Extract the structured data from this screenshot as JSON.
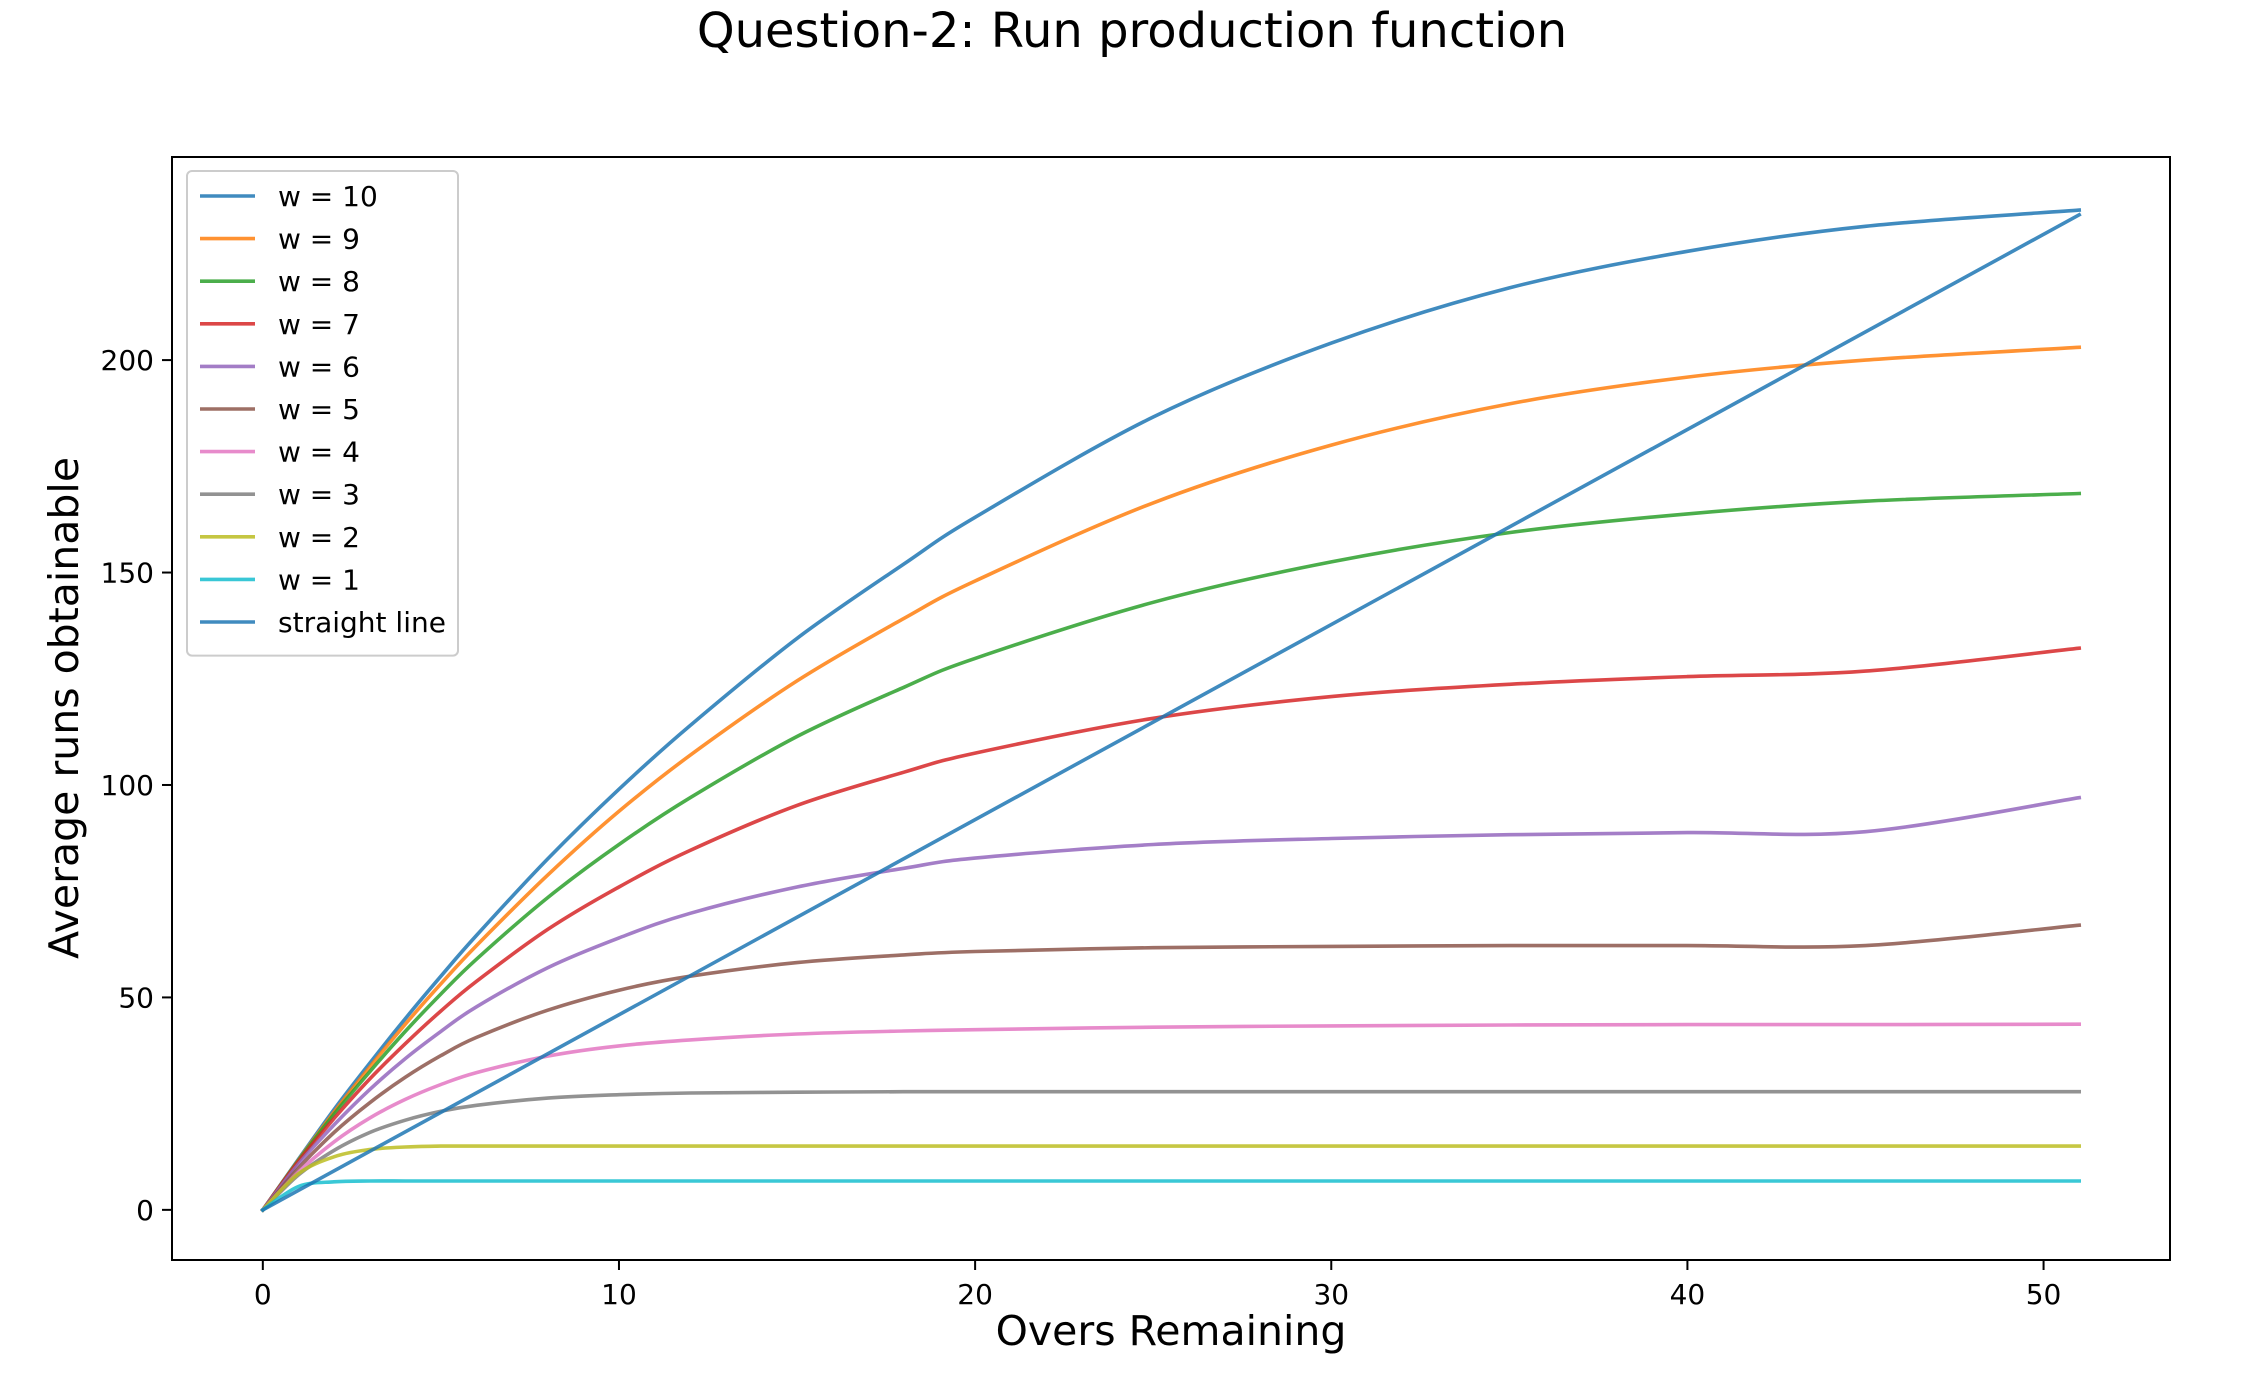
{
  "chart_data": {
    "type": "line",
    "title": "Question-2: Run production function",
    "xlabel": "Overs Remaining",
    "ylabel": "Average runs obtainable",
    "xlim": [
      -2.55,
      53.55
    ],
    "ylim": [
      -11.8,
      247.8
    ],
    "xticks": [
      0,
      10,
      20,
      30,
      40,
      50
    ],
    "yticks": [
      0,
      50,
      100,
      150,
      200
    ],
    "grid": false,
    "legend_position": "top-left",
    "x": [
      0,
      1,
      2,
      3,
      4,
      5,
      6,
      8,
      10,
      12,
      15,
      18,
      20,
      25,
      30,
      35,
      40,
      45,
      51
    ],
    "series": [
      {
        "name": "w = 10",
        "color": "#1f77b4",
        "values": [
          0,
          11.9,
          23.6,
          34.5,
          45,
          55,
          64.6,
          82.6,
          99,
          114,
          134.5,
          152,
          163,
          186.6,
          204,
          217,
          225.6,
          231.5,
          235.3
        ]
      },
      {
        "name": "w = 9",
        "color": "#ff7f0e",
        "values": [
          0,
          11.7,
          23,
          33.6,
          43.7,
          53.2,
          62.2,
          78.8,
          93.8,
          107,
          124.5,
          139.2,
          148,
          166.4,
          180,
          189.7,
          196,
          200,
          203
        ]
      },
      {
        "name": "w = 8",
        "color": "#2ca02c",
        "values": [
          0,
          11.6,
          22.5,
          32.5,
          42,
          50.8,
          59,
          73.5,
          86,
          97,
          111.4,
          123,
          129.8,
          143,
          152.5,
          159.4,
          163.8,
          166.8,
          168.6
        ]
      },
      {
        "name": "w = 7",
        "color": "#d62728",
        "values": [
          0,
          11.4,
          21.5,
          30.8,
          39.1,
          46.8,
          53.8,
          66,
          76,
          84.6,
          95.2,
          103,
          107.5,
          115.7,
          120.8,
          123.7,
          125.5,
          126.8,
          132.2
        ]
      },
      {
        "name": "w = 6",
        "color": "#9467bd",
        "values": [
          0,
          10.8,
          20,
          28.3,
          35.6,
          42,
          47.8,
          57,
          64,
          69.8,
          76,
          80.4,
          82.8,
          86,
          87.4,
          88.3,
          88.8,
          89,
          97
        ]
      },
      {
        "name": "w = 5",
        "color": "#8c564b",
        "values": [
          0,
          9.8,
          18.2,
          25.2,
          31.2,
          36.3,
          40.6,
          47,
          51.7,
          55,
          58.2,
          60,
          60.8,
          61.7,
          62,
          62.2,
          62.2,
          62.2,
          67
        ]
      },
      {
        "name": "w = 4",
        "color": "#e377c2",
        "values": [
          0,
          8.9,
          16,
          21.6,
          26,
          29.5,
          32.3,
          36.2,
          38.6,
          40,
          41.4,
          42.1,
          42.4,
          43,
          43.3,
          43.5,
          43.6,
          43.6,
          43.7
        ]
      },
      {
        "name": "w = 3",
        "color": "#7f7f7f",
        "values": [
          0,
          8.2,
          14,
          18.2,
          21.1,
          23.2,
          24.6,
          26.3,
          27.1,
          27.5,
          27.7,
          27.8,
          27.8,
          27.8,
          27.8,
          27.8,
          27.8,
          27.8,
          27.8
        ]
      },
      {
        "name": "w = 2",
        "color": "#bcbd22",
        "values": [
          0,
          8.5,
          12.5,
          14.2,
          14.8,
          15,
          15,
          15,
          15,
          15,
          15,
          15,
          15,
          15,
          15,
          15,
          15,
          15,
          15
        ]
      },
      {
        "name": "w = 1",
        "color": "#17becf",
        "values": [
          0,
          5.5,
          6.6,
          6.8,
          6.8,
          6.8,
          6.8,
          6.8,
          6.8,
          6.8,
          6.8,
          6.8,
          6.8,
          6.8,
          6.8,
          6.8,
          6.8,
          6.8,
          6.8
        ]
      },
      {
        "name": "straight line",
        "color": "#1f77b4",
        "x": [
          0,
          51
        ],
        "values": [
          0,
          234.2
        ]
      }
    ]
  }
}
